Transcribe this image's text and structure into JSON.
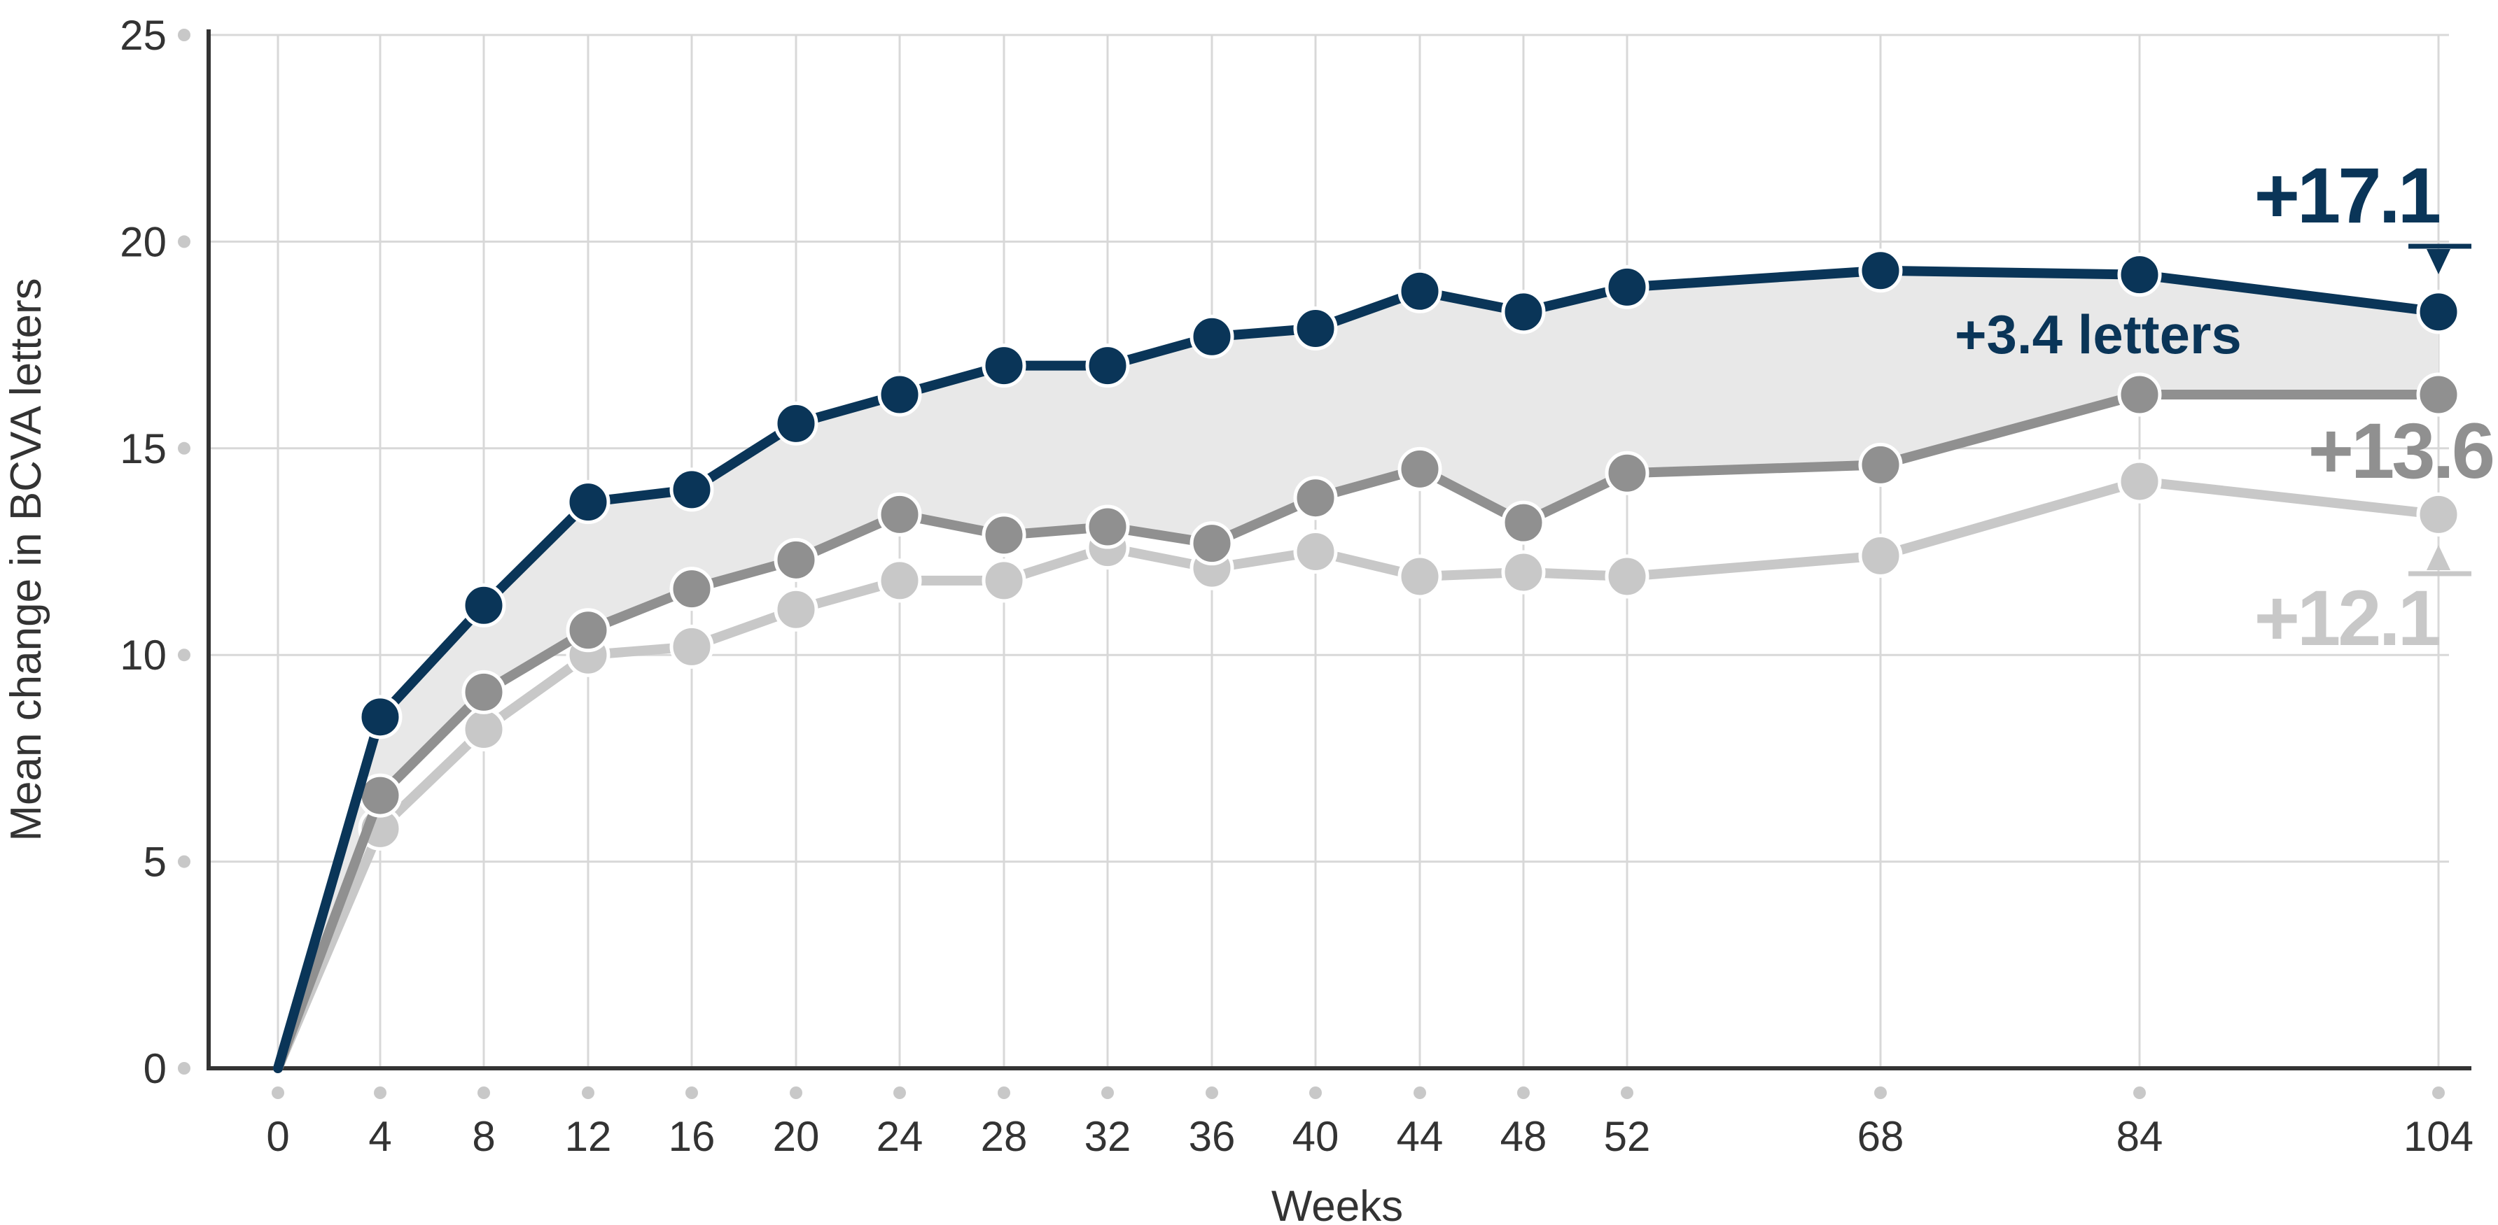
{
  "chart_data": {
    "type": "line",
    "xlabel": "Weeks",
    "ylabel": "Mean change in BCVA letters",
    "x": [
      0,
      4,
      8,
      12,
      16,
      20,
      24,
      28,
      32,
      36,
      40,
      44,
      48,
      52,
      68,
      84,
      104
    ],
    "x_tick_labels": [
      "0",
      "4",
      "8",
      "12",
      "16",
      "20",
      "24",
      "28",
      "32",
      "36",
      "40",
      "44",
      "48",
      "52",
      "68",
      "84",
      "104"
    ],
    "ylim": [
      0,
      25
    ],
    "y_ticks": [
      0,
      5,
      10,
      15,
      20,
      25
    ],
    "y_tick_labels": [
      "0",
      "5",
      "10",
      "15",
      "20",
      "25"
    ],
    "grid": true,
    "legend": "none",
    "series": [
      {
        "color": "#0a3558",
        "values": [
          0,
          8.5,
          11.2,
          13.7,
          14.0,
          15.6,
          16.3,
          17.0,
          17.0,
          17.7,
          17.9,
          18.8,
          18.3,
          18.9,
          19.3,
          19.2,
          18.3
        ]
      },
      {
        "color": "#909090",
        "values": [
          0,
          6.6,
          9.1,
          10.6,
          11.6,
          12.3,
          13.4,
          12.9,
          13.1,
          12.7,
          13.8,
          14.5,
          13.2,
          14.4,
          14.6,
          16.3,
          16.3
        ]
      },
      {
        "color": "#c8c8c8",
        "values": [
          0,
          5.8,
          8.2,
          10.0,
          10.2,
          11.1,
          11.8,
          11.8,
          12.6,
          12.1,
          12.5,
          11.9,
          12.0,
          11.9,
          12.4,
          14.2,
          13.4
        ]
      }
    ],
    "shaded_band": {
      "between_series": [
        0,
        1
      ],
      "color": "#e8e8e8"
    },
    "annotations": [
      {
        "text": "+17.1",
        "color": "#0a3558",
        "marker": "down-triangle",
        "at_x": 104
      },
      {
        "text": "+3.4 letters",
        "color": "#0a3558"
      },
      {
        "text": "+13.6",
        "color": "#909090"
      },
      {
        "text": "+12.1",
        "color": "#c8c8c8",
        "marker": "up-triangle",
        "at_x": 104
      }
    ]
  }
}
